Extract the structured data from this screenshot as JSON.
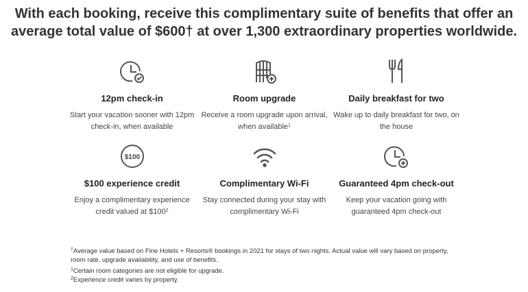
{
  "title": "With each booking, receive this complimentary suite of benefits that offer an average total value of $600† at over 1,300 extraordinary properties worldwide.",
  "benefits": [
    {
      "icon": "clock-check-icon",
      "title": "12pm check-in",
      "desc": "Start your vacation sooner with 12pm check-in, when available",
      "sup": ""
    },
    {
      "icon": "door-plus-icon",
      "title": "Room upgrade",
      "desc": "Receive a room upgrade upon arrival, when available",
      "sup": "1"
    },
    {
      "icon": "fork-knife-icon",
      "title": "Daily breakfast for two",
      "desc": "Wake up to daily breakfast for two, on the house",
      "sup": ""
    },
    {
      "icon": "dollar-100-icon",
      "icon_text": "$100",
      "title": "$100 experience credit",
      "desc": "Enjoy a complimentary experience credit valued at $100",
      "sup": "2"
    },
    {
      "icon": "wifi-icon",
      "title": "Complimentary Wi-Fi",
      "desc": "Stay connected during your stay with complimentary Wi-Fi",
      "sup": ""
    },
    {
      "icon": "clock-plus-icon",
      "title": "Guaranteed 4pm check-out",
      "desc": "Keep your vacation going with guaranteed 4pm check-out",
      "sup": ""
    }
  ],
  "footnotes": [
    {
      "mark": "†",
      "text": "Average value based on Fine Hotels + Resorts® bookings in 2021 for stays of two nights. Actual value will vary based on property, room rate, upgrade availability, and use of benefits."
    },
    {
      "mark": "1",
      "text": "Certain room categories are not eligible for upgrade."
    },
    {
      "mark": "2",
      "text": "Experience credit varies by property."
    }
  ]
}
